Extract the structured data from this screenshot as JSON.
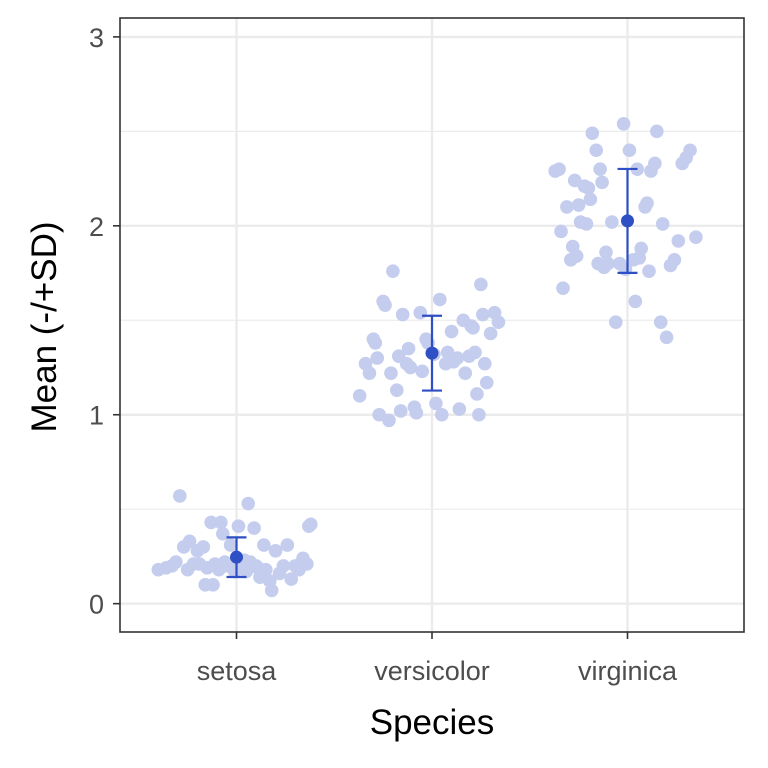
{
  "chart_data": {
    "type": "scatter",
    "xlabel": "Species",
    "ylabel": "Mean (-/+SD)",
    "categories": [
      "setosa",
      "versicolor",
      "virginica"
    ],
    "ylim": [
      -0.15,
      3.1
    ],
    "yticks": [
      0,
      1,
      2,
      3
    ],
    "grid": true,
    "colors": {
      "points": "#c4cdee",
      "summary": "#2f4fc4",
      "grid": "#ebebeb",
      "panel_border": "#333333"
    },
    "summary": [
      {
        "category": "setosa",
        "mean": 0.246,
        "sd": 0.105
      },
      {
        "category": "versicolor",
        "mean": 1.326,
        "sd": 0.198
      },
      {
        "category": "virginica",
        "mean": 2.026,
        "sd": 0.275
      }
    ],
    "points": [
      {
        "category": "setosa",
        "offset": [
          -0.4,
          -0.36,
          -0.33,
          -0.31,
          -0.29,
          -0.27,
          -0.25,
          -0.24,
          -0.22,
          -0.2,
          -0.19,
          -0.17,
          -0.16,
          -0.15,
          -0.13,
          -0.12,
          -0.11,
          -0.09,
          -0.08,
          -0.07,
          -0.06,
          -0.05,
          -0.03,
          -0.02,
          -0.01,
          0.01,
          0.02,
          0.04,
          0.05,
          0.06,
          0.07,
          0.09,
          0.1,
          0.11,
          0.12,
          0.14,
          0.15,
          0.17,
          0.18,
          0.2,
          0.22,
          0.24,
          0.26,
          0.28,
          0.3,
          0.32,
          0.34,
          0.36,
          0.37,
          0.38
        ],
        "y": [
          0.18,
          0.19,
          0.2,
          0.22,
          0.57,
          0.3,
          0.18,
          0.33,
          0.21,
          0.28,
          0.21,
          0.3,
          0.1,
          0.19,
          0.43,
          0.1,
          0.21,
          0.18,
          0.43,
          0.37,
          0.22,
          0.2,
          0.31,
          0.2,
          0.17,
          0.41,
          0.2,
          0.23,
          0.17,
          0.53,
          0.22,
          0.4,
          0.2,
          0.19,
          0.14,
          0.31,
          0.18,
          0.12,
          0.07,
          0.28,
          0.16,
          0.2,
          0.31,
          0.13,
          0.2,
          0.18,
          0.24,
          0.21,
          0.41,
          0.42
        ]
      },
      {
        "category": "versicolor",
        "offset": [
          -0.37,
          -0.34,
          -0.32,
          -0.3,
          -0.29,
          -0.28,
          -0.27,
          -0.25,
          -0.24,
          -0.22,
          -0.21,
          -0.2,
          -0.18,
          -0.17,
          -0.16,
          -0.15,
          -0.13,
          -0.12,
          -0.11,
          -0.09,
          -0.08,
          -0.06,
          -0.05,
          -0.03,
          -0.02,
          0.01,
          0.02,
          0.04,
          0.05,
          0.07,
          0.08,
          0.1,
          0.11,
          0.13,
          0.14,
          0.16,
          0.17,
          0.19,
          0.2,
          0.21,
          0.22,
          0.23,
          0.24,
          0.25,
          0.26,
          0.27,
          0.28,
          0.3,
          0.32,
          0.34
        ],
        "y": [
          1.1,
          1.27,
          1.22,
          1.4,
          1.38,
          1.3,
          1.0,
          1.6,
          1.58,
          0.97,
          1.22,
          1.76,
          1.13,
          1.31,
          1.02,
          1.53,
          1.27,
          1.35,
          1.25,
          1.04,
          1.01,
          1.54,
          1.23,
          1.4,
          1.38,
          1.32,
          1.06,
          1.61,
          1.0,
          1.27,
          1.33,
          1.44,
          1.28,
          1.3,
          1.03,
          1.5,
          1.22,
          1.31,
          1.47,
          1.46,
          1.33,
          1.11,
          1.0,
          1.69,
          1.53,
          1.27,
          1.17,
          1.43,
          1.54,
          1.49
        ]
      },
      {
        "category": "virginica",
        "offset": [
          -0.37,
          -0.35,
          -0.34,
          -0.33,
          -0.31,
          -0.29,
          -0.28,
          -0.27,
          -0.26,
          -0.25,
          -0.24,
          -0.22,
          -0.21,
          -0.2,
          -0.19,
          -0.18,
          -0.16,
          -0.15,
          -0.14,
          -0.13,
          -0.12,
          -0.11,
          -0.1,
          -0.08,
          -0.06,
          -0.04,
          -0.02,
          -0.01,
          0.01,
          0.03,
          0.04,
          0.05,
          0.06,
          0.07,
          0.09,
          0.1,
          0.11,
          0.12,
          0.14,
          0.15,
          0.17,
          0.18,
          0.2,
          0.22,
          0.24,
          0.26,
          0.28,
          0.3,
          0.32,
          0.35
        ],
        "y": [
          2.29,
          2.3,
          1.97,
          1.67,
          2.1,
          1.82,
          1.89,
          2.24,
          1.84,
          2.11,
          2.02,
          2.21,
          2.01,
          2.2,
          2.14,
          2.49,
          2.4,
          1.8,
          2.3,
          2.23,
          1.78,
          1.86,
          1.8,
          2.02,
          1.49,
          1.8,
          2.54,
          1.77,
          2.4,
          1.82,
          1.6,
          2.3,
          1.83,
          1.88,
          2.1,
          2.12,
          1.76,
          2.29,
          2.33,
          2.5,
          1.49,
          2.01,
          1.41,
          1.79,
          1.82,
          1.92,
          2.33,
          2.36,
          2.4,
          1.94
        ]
      }
    ]
  }
}
